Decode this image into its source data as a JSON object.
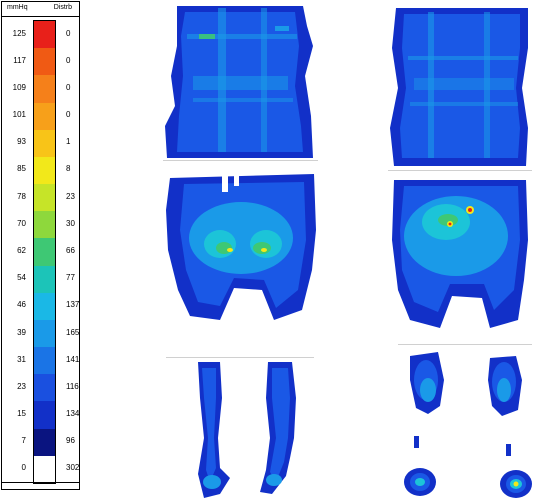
{
  "legend": {
    "header_left": "mmHq",
    "header_right": "Distrb",
    "rows": [
      {
        "mmhg": "125",
        "distrb": "0",
        "color": "#e8201a"
      },
      {
        "mmhg": "117",
        "distrb": "0",
        "color": "#f05a14"
      },
      {
        "mmhg": "109",
        "distrb": "0",
        "color": "#f5801a"
      },
      {
        "mmhg": "101",
        "distrb": "0",
        "color": "#f7a01a"
      },
      {
        "mmhg": "93",
        "distrb": "1",
        "color": "#f8c418"
      },
      {
        "mmhg": "85",
        "distrb": "8",
        "color": "#f2e81a"
      },
      {
        "mmhg": "78",
        "distrb": "23",
        "color": "#c6e428"
      },
      {
        "mmhg": "70",
        "distrb": "30",
        "color": "#8ed83c"
      },
      {
        "mmhg": "62",
        "distrb": "66",
        "color": "#3ec874"
      },
      {
        "mmhg": "54",
        "distrb": "77",
        "color": "#1cc4b8"
      },
      {
        "mmhg": "46",
        "distrb": "137",
        "color": "#1ab8e6"
      },
      {
        "mmhg": "39",
        "distrb": "165",
        "color": "#1a9ae8"
      },
      {
        "mmhg": "31",
        "distrb": "141",
        "color": "#1a74e6"
      },
      {
        "mmhg": "23",
        "distrb": "116",
        "color": "#1a50e0"
      },
      {
        "mmhg": "15",
        "distrb": "134",
        "color": "#1230c8"
      },
      {
        "mmhg": "7",
        "distrb": "96",
        "color": "#0a1480"
      },
      {
        "mmhg": "0",
        "distrb": "302",
        "color": "#ffffff"
      }
    ]
  },
  "colors": {
    "deep": "#1230c8",
    "blue": "#1a58e6",
    "mid": "#1a9ae8",
    "cyan": "#1cc4d8",
    "green": "#3ec874",
    "yellow": "#f2e81a",
    "red": "#e8201a"
  }
}
